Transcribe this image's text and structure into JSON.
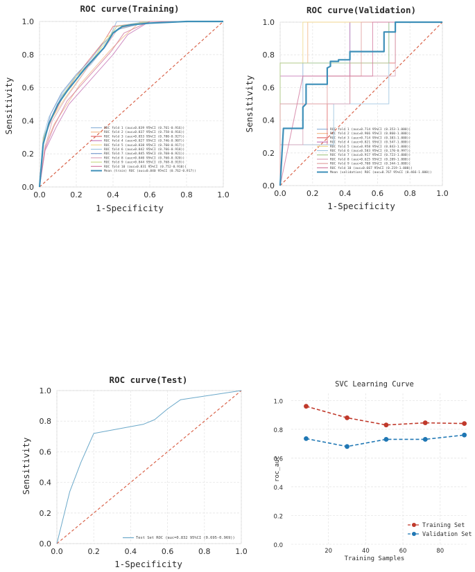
{
  "chart_data": [
    {
      "type": "line",
      "title": "ROC curve(Training)",
      "xlabel": "1-Specificity",
      "ylabel": "Sensitivity",
      "xlim": [
        0,
        1
      ],
      "ylim": [
        0,
        1
      ],
      "xticks": [
        "0.0",
        "0.2",
        "0.4",
        "0.6",
        "0.8",
        "1.0"
      ],
      "yticks": [
        "0.0",
        "0.2",
        "0.4",
        "0.6",
        "0.8",
        "1.0"
      ],
      "grid": true,
      "legend_position": "bottom-right",
      "diagonal_color": "#d9634a",
      "series": [
        {
          "name": "ROC fold   1 (auc=0.839 95%CI (0.761-0.916))",
          "color": "#8fb3d9",
          "x": [
            0,
            0.02,
            0.06,
            0.12,
            0.2,
            0.28,
            0.36,
            0.42,
            0.6,
            1
          ],
          "y": [
            0,
            0.3,
            0.4,
            0.55,
            0.65,
            0.75,
            0.85,
            1,
            1,
            1
          ]
        },
        {
          "name": "ROC fold   2 (auc=0.837 95%CI (0.758-0.916))",
          "color": "#f2b98a",
          "x": [
            0,
            0.03,
            0.08,
            0.15,
            0.22,
            0.3,
            0.38,
            0.45,
            0.55,
            1
          ],
          "y": [
            0,
            0.25,
            0.38,
            0.5,
            0.62,
            0.72,
            0.82,
            0.9,
            1,
            1
          ]
        },
        {
          "name": "ROC fold   3 (auc=0.853 95%CI (0.780-0.927))",
          "color": "#e06a6a",
          "x": [
            0,
            0.02,
            0.07,
            0.13,
            0.2,
            0.27,
            0.35,
            0.4,
            0.6,
            1
          ],
          "y": [
            0,
            0.28,
            0.42,
            0.55,
            0.67,
            0.77,
            0.88,
            0.97,
            1,
            1
          ]
        },
        {
          "name": "ROC fold   4 (auc=0.827 95%CI (0.746-0.907))",
          "color": "#c77ab8",
          "x": [
            0,
            0.03,
            0.09,
            0.16,
            0.24,
            0.32,
            0.4,
            0.48,
            0.6,
            1
          ],
          "y": [
            0,
            0.22,
            0.36,
            0.5,
            0.6,
            0.7,
            0.8,
            0.92,
            1,
            1
          ]
        },
        {
          "name": "ROC fold   5 (auc=0.838 95%CI (0.760-0.917))",
          "color": "#f0d98c",
          "x": [
            0,
            0.02,
            0.06,
            0.14,
            0.22,
            0.3,
            0.36,
            0.44,
            0.6,
            1
          ],
          "y": [
            0,
            0.27,
            0.4,
            0.54,
            0.66,
            0.78,
            0.9,
            0.96,
            1,
            1
          ]
        },
        {
          "name": "ROC fold   6 (auc=0.842 95%CI (0.766-0.918))",
          "color": "#9ec5e0",
          "x": [
            0,
            0.02,
            0.05,
            0.12,
            0.19,
            0.28,
            0.35,
            0.42,
            0.58,
            1
          ],
          "y": [
            0,
            0.3,
            0.42,
            0.56,
            0.66,
            0.74,
            0.84,
            0.97,
            1,
            1
          ]
        },
        {
          "name": "ROC fold   7 (auc=0.845 95%CI (0.768-0.921))",
          "color": "#7a9ccf",
          "x": [
            0,
            0.02,
            0.06,
            0.12,
            0.2,
            0.27,
            0.34,
            0.42,
            0.6,
            1
          ],
          "y": [
            0,
            0.26,
            0.44,
            0.57,
            0.68,
            0.76,
            0.86,
            0.95,
            1,
            1
          ]
        },
        {
          "name": "ROC fold   8 (auc=0.840 95%CI (0.760-0.920))",
          "color": "#d7a3b8",
          "x": [
            0,
            0.03,
            0.07,
            0.14,
            0.21,
            0.28,
            0.36,
            0.43,
            0.6,
            1
          ],
          "y": [
            0,
            0.24,
            0.4,
            0.53,
            0.64,
            0.75,
            0.85,
            0.96,
            1,
            1
          ]
        },
        {
          "name": "ROC fold   9 (auc=0.844 95%CI (0.768-0.919))",
          "color": "#c9d98a",
          "x": [
            0,
            0.02,
            0.06,
            0.13,
            0.2,
            0.28,
            0.35,
            0.42,
            0.6,
            1
          ],
          "y": [
            0,
            0.29,
            0.41,
            0.56,
            0.67,
            0.76,
            0.86,
            0.97,
            1,
            1
          ]
        },
        {
          "name": "ROC fold  10 (auc=0.831 95%CI (0.752-0.910))",
          "color": "#d27ba0",
          "x": [
            0,
            0.03,
            0.08,
            0.15,
            0.23,
            0.31,
            0.39,
            0.46,
            0.6,
            1
          ],
          "y": [
            0,
            0.23,
            0.37,
            0.52,
            0.62,
            0.72,
            0.82,
            0.93,
            1,
            1
          ]
        },
        {
          "name": "Mean (train) ROC (auc=0.840 95%CI (0.762-0.917))",
          "color": "#3d8fb8",
          "mean": true,
          "x": [
            0,
            0.02,
            0.05,
            0.1,
            0.15,
            0.2,
            0.25,
            0.3,
            0.35,
            0.4,
            0.45,
            0.5,
            0.6,
            0.8,
            1
          ],
          "y": [
            0,
            0.26,
            0.38,
            0.5,
            0.58,
            0.65,
            0.72,
            0.78,
            0.84,
            0.93,
            0.97,
            0.98,
            0.99,
            1,
            1
          ]
        }
      ]
    },
    {
      "type": "line",
      "title": "ROC curve(Validation)",
      "xlabel": "1-Specificity",
      "ylabel": "Sensitivity",
      "xlim": [
        0,
        1
      ],
      "ylim": [
        0,
        1
      ],
      "xticks": [
        "0.0",
        "0.2",
        "0.4",
        "0.6",
        "0.8",
        "1.0"
      ],
      "yticks": [
        "0.0",
        "0.2",
        "0.4",
        "0.6",
        "0.8",
        "1.0"
      ],
      "grid": true,
      "legend_position": "bottom-right",
      "diagonal_color": "#d9634a",
      "series": [
        {
          "name": "ROC fold   1 (auc=0.714 95%CI (0.353-1.000))",
          "color": "#8fb3d9",
          "x": [
            0,
            0,
            0.14,
            0.14,
            0.43,
            0.43,
            1
          ],
          "y": [
            0,
            0.5,
            0.5,
            0.75,
            0.75,
            1,
            1
          ]
        },
        {
          "name": "ROC fold   2 (auc=0.966 95%CI (0.860-1.000))",
          "color": "#f2b98a",
          "x": [
            0,
            0,
            0.17,
            0.17,
            1
          ],
          "y": [
            0,
            0.75,
            0.75,
            1,
            1
          ]
        },
        {
          "name": "ROC fold   3 (auc=0.714 95%CI (0.383-1.000))",
          "color": "#e06a6a",
          "x": [
            0,
            0,
            0.29,
            0.29,
            0.43,
            0.43,
            0.71,
            0.71,
            1
          ],
          "y": [
            0,
            0.25,
            0.25,
            0.5,
            0.5,
            0.75,
            0.75,
            1,
            1
          ]
        },
        {
          "name": "ROC fold   4 (auc=0.821 95%CI (0.547-1.000))",
          "color": "#c77ab8",
          "x": [
            0,
            0,
            0.14,
            0.14,
            0.43,
            0.43,
            1
          ],
          "y": [
            0,
            0.67,
            0.67,
            0.67,
            0.67,
            1,
            1
          ]
        },
        {
          "name": "ROC fold   5 (auc=0.958 95%CI (0.843-1.000))",
          "color": "#f0d98c",
          "x": [
            0,
            0,
            0.14,
            0.14,
            1
          ],
          "y": [
            0,
            0.75,
            0.75,
            1,
            1
          ]
        },
        {
          "name": "ROC fold   6 (auc=0.583 95%CI (0.170-0.997))",
          "color": "#9ec5e0",
          "x": [
            0,
            0,
            0.33,
            0.33,
            0.67,
            0.67,
            1
          ],
          "y": [
            0,
            0.25,
            0.25,
            0.5,
            0.5,
            1,
            1
          ]
        },
        {
          "name": "ROC fold   7 (auc=0.917 95%CI (0.723-1.000))",
          "color": "#a7c98a",
          "x": [
            0,
            0,
            0.33,
            0.33,
            0.67,
            0.67,
            1
          ],
          "y": [
            0,
            0.75,
            0.75,
            0.75,
            0.75,
            1,
            1
          ]
        },
        {
          "name": "ROC fold   8 (auc=0.625 95%CI (0.209-1.000))",
          "color": "#d7a3b8",
          "x": [
            0,
            0,
            0.14,
            0.14,
            0.43,
            0.43,
            0.71,
            0.71,
            1
          ],
          "y": [
            0,
            0.25,
            0.25,
            0.5,
            0.5,
            0.67,
            0.67,
            1,
            1
          ]
        },
        {
          "name": "ROC fold   9 (auc=0.708 95%CI (0.344-1.000))",
          "color": "#e0a0a0",
          "x": [
            0,
            0,
            0.29,
            0.29,
            0.5,
            0.5,
            1
          ],
          "y": [
            0,
            0.5,
            0.5,
            0.67,
            0.67,
            1,
            1
          ]
        },
        {
          "name": "ROC fold  10 (auc=0.667 95%CI (0.219-1.000))",
          "color": "#d27ba0",
          "x": [
            0,
            0,
            0.14,
            0.14,
            0.57,
            0.57,
            1
          ],
          "y": [
            0,
            0,
            0.67,
            0.67,
            0.67,
            1,
            1
          ]
        },
        {
          "name": "Mean (validation) ROC (auc=0.767 95%CI (0.466-1.000))",
          "color": "#3d8fb8",
          "mean": true,
          "x": [
            0,
            0.02,
            0.14,
            0.14,
            0.16,
            0.16,
            0.29,
            0.29,
            0.31,
            0.31,
            0.36,
            0.36,
            0.43,
            0.43,
            0.64,
            0.64,
            0.71,
            0.71,
            1
          ],
          "y": [
            0,
            0.35,
            0.35,
            0.48,
            0.5,
            0.62,
            0.62,
            0.72,
            0.73,
            0.76,
            0.76,
            0.77,
            0.77,
            0.82,
            0.82,
            0.94,
            0.94,
            1,
            1
          ]
        }
      ]
    },
    {
      "type": "line",
      "title": "ROC curve(Test)",
      "xlabel": "1-Specificity",
      "ylabel": "Sensitivity",
      "xlim": [
        0,
        1
      ],
      "ylim": [
        0,
        1
      ],
      "xticks": [
        "0.0",
        "0.2",
        "0.4",
        "0.6",
        "0.8",
        "1.0"
      ],
      "yticks": [
        "0.0",
        "0.2",
        "0.4",
        "0.6",
        "0.8",
        "1.0"
      ],
      "grid": true,
      "legend_position": "bottom-right",
      "diagonal_color": "#d9634a",
      "series": [
        {
          "name": "Test Set ROC (auc=0.832 95%CI (0.695-0.969))",
          "color": "#6aa8c9",
          "x": [
            0,
            0.07,
            0.13,
            0.2,
            0.47,
            0.53,
            0.6,
            0.67,
            1
          ],
          "y": [
            0,
            0.34,
            0.53,
            0.72,
            0.78,
            0.81,
            0.88,
            0.94,
            1
          ]
        }
      ]
    },
    {
      "type": "line",
      "title": "SVC Learning Curve",
      "xlabel": "Training Samples",
      "ylabel": "roc_auc",
      "xlim": [
        0,
        95
      ],
      "ylim": [
        0,
        1.05
      ],
      "xticks": [
        "20",
        "40",
        "60",
        "80"
      ],
      "yticks": [
        "0.0",
        "0.2",
        "0.4",
        "0.6",
        "0.8",
        "1.0"
      ],
      "grid": true,
      "legend_position": "bottom-right",
      "series": [
        {
          "name": "Training Set",
          "color": "#c0392b",
          "x": [
            8,
            30,
            51,
            72,
            93
          ],
          "y": [
            0.96,
            0.88,
            0.83,
            0.845,
            0.84
          ]
        },
        {
          "name": "Validation Set",
          "color": "#1f77b4",
          "x": [
            8,
            30,
            51,
            72,
            93
          ],
          "y": [
            0.735,
            0.68,
            0.73,
            0.73,
            0.76
          ]
        }
      ]
    }
  ]
}
